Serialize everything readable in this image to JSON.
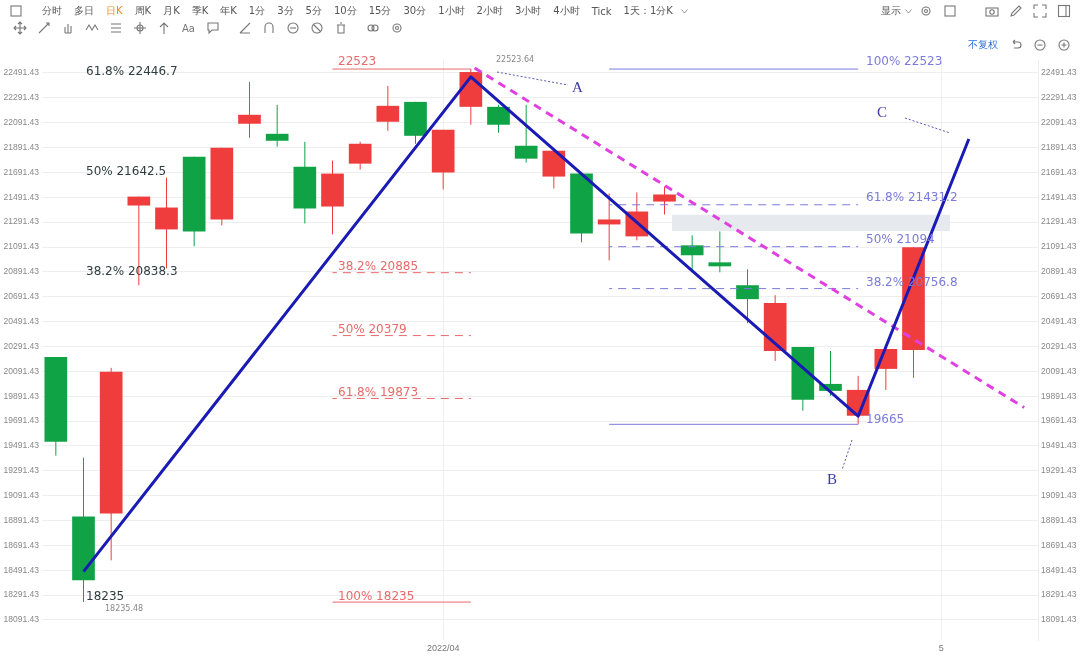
{
  "chart_data": {
    "type": "candlestick",
    "categories": [
      null,
      null,
      null,
      null,
      null,
      null,
      null,
      null,
      null,
      null,
      null,
      null,
      null,
      null,
      "2022/04",
      null,
      null,
      null,
      null,
      null,
      null,
      null,
      null,
      null,
      null,
      null,
      null,
      null,
      null,
      null,
      null,
      null,
      "5",
      null,
      null,
      null
    ],
    "ohlc": [
      [
        20207,
        20207,
        19413,
        19525
      ],
      [
        18924,
        19397,
        18235.48,
        18411
      ],
      [
        18948,
        20119,
        18571,
        20087
      ],
      [
        21425,
        21497,
        20784,
        21497
      ],
      [
        21233,
        21650,
        20920,
        21409
      ],
      [
        21818,
        21818,
        21097,
        21217
      ],
      [
        21313,
        21890,
        21265,
        21890
      ],
      [
        22083,
        22419,
        21970,
        22155
      ],
      [
        22002,
        22235,
        21898,
        21946
      ],
      [
        21738,
        21938,
        21281,
        21401
      ],
      [
        21417,
        21786,
        21193,
        21682
      ],
      [
        21762,
        21938,
        21714,
        21922
      ],
      [
        22099,
        22387,
        22026,
        22227
      ],
      [
        22259,
        22259,
        21922,
        21986
      ],
      [
        21690,
        22034,
        21554,
        22034
      ],
      [
        22219,
        22523.64,
        22075,
        22499
      ],
      [
        22219,
        22235,
        22010,
        22075
      ],
      [
        21906,
        22235,
        21770,
        21802
      ],
      [
        21658,
        21866,
        21562,
        21866
      ],
      [
        21682,
        21682,
        21129,
        21201
      ],
      [
        21273,
        21522,
        20984,
        21313
      ],
      [
        21177,
        21530,
        21145,
        21377
      ],
      [
        21457,
        21578,
        21353,
        21514
      ],
      [
        21105,
        21185,
        20888,
        21025
      ],
      [
        20968,
        21217,
        20888,
        20936
      ],
      [
        20784,
        20912,
        20479,
        20672
      ],
      [
        20255,
        20704,
        20175,
        20640
      ],
      [
        20287,
        20287,
        19774,
        19862
      ],
      [
        19990,
        20255,
        19894,
        19934
      ],
      [
        19734,
        20055,
        19665,
        19942
      ],
      [
        20111,
        20271,
        19942,
        20271
      ],
      [
        20263,
        21089,
        20039,
        21089
      ],
      null,
      null,
      null,
      null
    ],
    "colors": [
      "#10a346",
      "#10a346",
      "#ef3d3d",
      "#ef3d3d",
      "#ef3d3d",
      "#10a346",
      "#ef3d3d",
      "#ef3d3d",
      "#10a346",
      "#10a346",
      "#ef3d3d",
      "#ef3d3d",
      "#ef3d3d",
      "#10a346",
      "#ef3d3d",
      "#ef3d3d",
      "#10a346",
      "#10a346",
      "#ef3d3d",
      "#10a346",
      "#ef3d3d",
      "#ef3d3d",
      "#ef3d3d",
      "#10a346",
      "#10a346",
      "#10a346",
      "#ef3d3d",
      "#10a346",
      "#10a346",
      "#ef3d3d",
      "#ef3d3d",
      "#ef3d3d",
      null,
      null,
      null,
      null
    ],
    "series": [
      {
        "type": "line",
        "color": "#1a1ab4",
        "line_style": "solid",
        "values": [
          null,
          18480,
          null,
          null,
          null,
          null,
          null,
          null,
          null,
          null,
          null,
          null,
          null,
          null,
          null,
          22460,
          null,
          null,
          null,
          null,
          null,
          null,
          null,
          null,
          null,
          null,
          null,
          null,
          null,
          19730,
          null,
          null,
          null,
          21960,
          null,
          null
        ]
      },
      {
        "type": "line",
        "color": "#e040e0",
        "line_style": "dashed",
        "values": [
          null,
          null,
          null,
          null,
          null,
          null,
          null,
          null,
          null,
          null,
          null,
          null,
          null,
          null,
          null,
          22550,
          null,
          null,
          null,
          null,
          null,
          null,
          null,
          null,
          null,
          null,
          null,
          null,
          null,
          null,
          null,
          null,
          null,
          null,
          null,
          19800
        ]
      },
      {
        "type": "line",
        "color": "#e86a6a",
        "line_style": "solid",
        "values": [
          null,
          null,
          null,
          null,
          null,
          null,
          null,
          null,
          null,
          null,
          22523,
          null,
          null,
          null,
          null,
          22523,
          null,
          null,
          null,
          null,
          null,
          null,
          null,
          null,
          null,
          null,
          null,
          null,
          null,
          null,
          null,
          null,
          null,
          null,
          null,
          null
        ]
      },
      {
        "type": "line",
        "color": "#e86a6a",
        "line_style": "dashed",
        "values": [
          null,
          null,
          null,
          null,
          null,
          null,
          null,
          null,
          null,
          null,
          20885,
          null,
          null,
          null,
          null,
          20885,
          null,
          null,
          null,
          null,
          null,
          null,
          null,
          null,
          null,
          null,
          null,
          null,
          null,
          null,
          null,
          null,
          null,
          null,
          null,
          null
        ]
      },
      {
        "type": "line",
        "color": "#e86a6a",
        "line_style": "dashed",
        "values": [
          null,
          null,
          null,
          null,
          null,
          null,
          null,
          null,
          null,
          null,
          20379,
          null,
          null,
          null,
          null,
          20379,
          null,
          null,
          null,
          null,
          null,
          null,
          null,
          null,
          null,
          null,
          null,
          null,
          null,
          null,
          null,
          null,
          null,
          null,
          null,
          null
        ]
      },
      {
        "type": "line",
        "color": "#e86a6a",
        "line_style": "dashed",
        "values": [
          null,
          null,
          null,
          null,
          null,
          null,
          null,
          null,
          null,
          null,
          19873,
          null,
          null,
          null,
          null,
          19873,
          null,
          null,
          null,
          null,
          null,
          null,
          null,
          null,
          null,
          null,
          null,
          null,
          null,
          null,
          null,
          null,
          null,
          null,
          null,
          null
        ]
      },
      {
        "type": "line",
        "color": "#e86a6a",
        "line_style": "solid",
        "values": [
          null,
          null,
          null,
          null,
          null,
          null,
          null,
          null,
          null,
          null,
          18235,
          null,
          null,
          null,
          null,
          18235,
          null,
          null,
          null,
          null,
          null,
          null,
          null,
          null,
          null,
          null,
          null,
          null,
          null,
          null,
          null,
          null,
          null,
          null,
          null,
          null
        ]
      },
      {
        "type": "line",
        "color": "#7b7bdc",
        "line_style": "solid",
        "values": [
          null,
          null,
          null,
          null,
          null,
          null,
          null,
          null,
          null,
          null,
          null,
          null,
          null,
          null,
          null,
          null,
          null,
          null,
          null,
          null,
          22523,
          null,
          null,
          null,
          null,
          null,
          null,
          null,
          null,
          22523,
          null,
          null,
          null,
          null,
          null,
          null
        ]
      },
      {
        "type": "line",
        "color": "#7b7bdc",
        "line_style": "dashed",
        "values": [
          null,
          null,
          null,
          null,
          null,
          null,
          null,
          null,
          null,
          null,
          null,
          null,
          null,
          null,
          null,
          null,
          null,
          null,
          null,
          null,
          21431.2,
          null,
          null,
          null,
          null,
          null,
          null,
          null,
          null,
          21431.2,
          null,
          null,
          null,
          null,
          null,
          null
        ]
      },
      {
        "type": "line",
        "color": "#7b7bdc",
        "line_style": "dashed",
        "values": [
          null,
          null,
          null,
          null,
          null,
          null,
          null,
          null,
          null,
          null,
          null,
          null,
          null,
          null,
          null,
          null,
          null,
          null,
          null,
          null,
          21094,
          null,
          null,
          null,
          null,
          null,
          null,
          null,
          null,
          21094,
          null,
          null,
          null,
          null,
          null,
          null
        ]
      },
      {
        "type": "line",
        "color": "#7b7bdc",
        "line_style": "dashed",
        "values": [
          null,
          null,
          null,
          null,
          null,
          null,
          null,
          null,
          null,
          null,
          null,
          null,
          null,
          null,
          null,
          null,
          null,
          null,
          null,
          null,
          20756.8,
          null,
          null,
          null,
          null,
          null,
          null,
          null,
          null,
          20756.8,
          null,
          null,
          null,
          null,
          null,
          null
        ]
      },
      {
        "type": "line",
        "color": "#7b7bdc",
        "line_style": "solid",
        "values": [
          null,
          null,
          null,
          null,
          null,
          null,
          null,
          null,
          null,
          null,
          null,
          null,
          null,
          null,
          null,
          null,
          null,
          null,
          null,
          null,
          19665,
          null,
          null,
          null,
          null,
          null,
          null,
          null,
          null,
          19665,
          null,
          null,
          null,
          null,
          null,
          null
        ]
      }
    ],
    "annotations": [
      "分时",
      "多日",
      "日K",
      "周K",
      "月K",
      "季K",
      "年K",
      "1分",
      "3分",
      "5分",
      "10分",
      "15分",
      "30分",
      "1小时",
      "2小时",
      "3小时",
      "4小时",
      "Tick",
      "1天：1分K",
      "Aa",
      "显示",
      "不复权",
      "61.8% 22446.7",
      "50% 21642.5",
      "38.2% 20838.3",
      "A",
      "B",
      "C",
      "18235",
      "18235.48",
      "22523",
      "22523.64",
      "38.2% 20885",
      "50% 20379",
      "61.8% 19873",
      "100% 18235",
      "100% 22523",
      "61.8% 21431.2",
      "50% 21094",
      "38.2% 20756.8",
      "19665"
    ],
    "bands": [
      {
        "axis": "y",
        "from": 21220,
        "to": 21350,
        "color": "#e6e9ee"
      }
    ],
    "ylim": [
      17930,
      22595
    ],
    "yticks": [
      18091.43,
      18291.43,
      18491.43,
      18691.43,
      18891.43,
      19091.43,
      19291.43,
      19491.43,
      19691.43,
      19891.43,
      20091.43,
      20291.43,
      20491.43,
      20691.43,
      20891.43,
      21091.43,
      21291.43,
      21491.43,
      21691.43,
      21891.43,
      22091.43,
      22291.43,
      22491.43
    ],
    "y2lim": [
      17930,
      22595
    ],
    "y2ticks": [
      18091.43,
      18291.43,
      18491.43,
      18691.43,
      18891.43,
      19091.43,
      19291.43,
      19491.43,
      19691.43,
      19891.43,
      20091.43,
      20291.43,
      20491.43,
      20691.43,
      20891.43,
      21091.43,
      21291.43,
      21491.43,
      21691.43,
      21891.43,
      22091.43,
      22291.43,
      22491.43
    ],
    "grid": true
  }
}
